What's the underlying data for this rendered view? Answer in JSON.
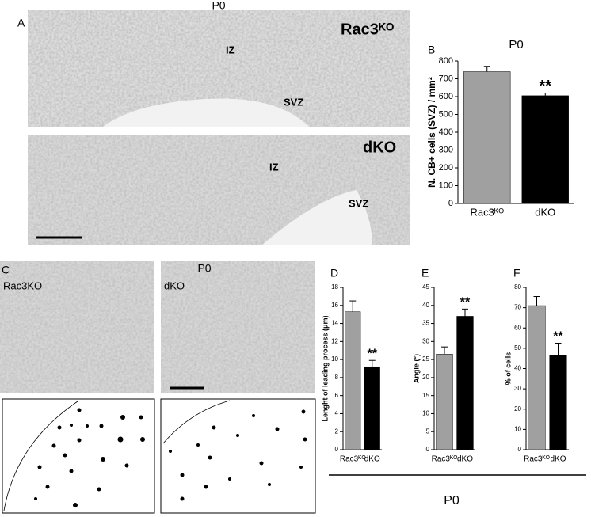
{
  "figure": {
    "panel_labels": [
      "A",
      "B",
      "C",
      "D",
      "E",
      "F"
    ],
    "headings": [
      "P0",
      "P0",
      "P0"
    ],
    "image_labels": [
      "Rac3ᴷᴼ",
      "IZ",
      "SVZ",
      "dKO",
      "IZ",
      "SVZ",
      "Rac3KO",
      "dKO"
    ]
  },
  "chart_data": [
    {
      "type": "bar",
      "title": "P0",
      "y_label": "N. CB+ cells (SVZ) / mm²",
      "categories": [
        "Rac3ᴷᴼ",
        "dKO"
      ],
      "values": [
        740,
        605
      ],
      "errors": [
        30,
        15
      ],
      "colors": [
        "#a0a0a0",
        "#000000"
      ],
      "annotation": "**",
      "ylim": [
        0,
        800
      ],
      "yticks": [
        0,
        100,
        200,
        300,
        400,
        500,
        600,
        700,
        800
      ]
    },
    {
      "type": "bar",
      "y_label": "Lenght of leading process (μm)",
      "categories": [
        "Rac3ᴷᴼ",
        "dKO"
      ],
      "values": [
        15.3,
        9.2
      ],
      "errors": [
        1.2,
        0.7
      ],
      "colors": [
        "#a0a0a0",
        "#000000"
      ],
      "annotation": "**",
      "ylim": [
        0,
        18
      ],
      "yticks": [
        0,
        2,
        4,
        6,
        8,
        10,
        12,
        14,
        16,
        18
      ]
    },
    {
      "type": "bar",
      "y_label": "Angle (°)",
      "categories": [
        "Rac3ᴷᴼ",
        "dKO"
      ],
      "values": [
        26.5,
        37
      ],
      "errors": [
        2,
        2
      ],
      "colors": [
        "#a0a0a0",
        "#000000"
      ],
      "annotation": "**",
      "ylim": [
        0,
        45
      ],
      "yticks": [
        0,
        5,
        10,
        15,
        20,
        25,
        30,
        35,
        40,
        45
      ]
    },
    {
      "type": "bar",
      "y_label": "% of cells",
      "categories": [
        "Rac3ᴷᴼ",
        "dKO"
      ],
      "values": [
        71,
        46.5
      ],
      "errors": [
        4.5,
        6
      ],
      "colors": [
        "#a0a0a0",
        "#000000"
      ],
      "annotation": "**",
      "ylim": [
        0,
        80
      ],
      "yticks": [
        0,
        10,
        20,
        30,
        40,
        50,
        60,
        70,
        80
      ]
    }
  ]
}
